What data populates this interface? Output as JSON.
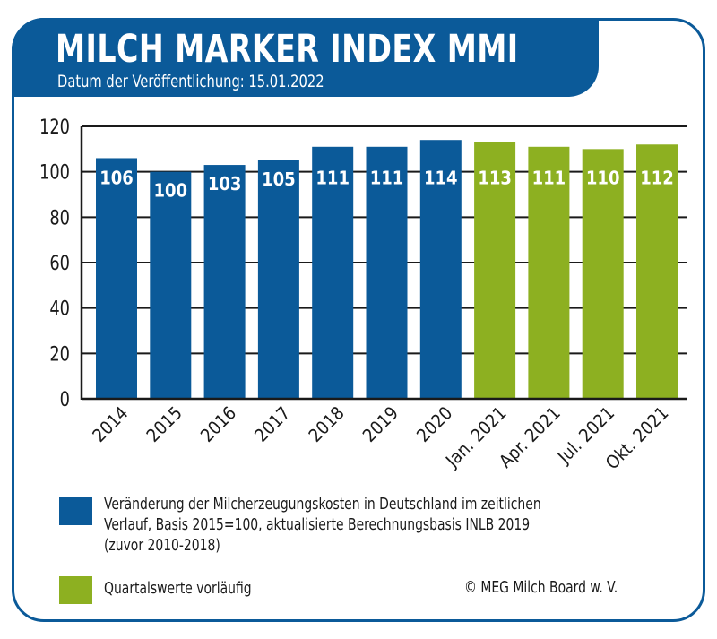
{
  "header": {
    "title": "MILCH MARKER INDEX MMI",
    "subtitle": "Datum der Veröffentlichung: 15.01.2022"
  },
  "colors": {
    "brand_blue": "#0b5a99",
    "provisional_green": "#8db021"
  },
  "chart_data": {
    "type": "bar",
    "title": "MILCH MARKER INDEX MMI",
    "subtitle": "Datum der Veröffentlichung: 15.01.2022",
    "xlabel": "",
    "ylabel": "",
    "ylim": [
      0,
      120
    ],
    "yticks": [
      0,
      20,
      40,
      60,
      80,
      100,
      120
    ],
    "grid": true,
    "categories": [
      "2014",
      "2015",
      "2016",
      "2017",
      "2018",
      "2019",
      "2020",
      "Jan. 2021",
      "Apr. 2021",
      "Jul. 2021",
      "Okt. 2021"
    ],
    "values": [
      106,
      100,
      103,
      105,
      111,
      111,
      114,
      113,
      111,
      110,
      112
    ],
    "bar_groups": [
      "annual",
      "annual",
      "annual",
      "annual",
      "annual",
      "annual",
      "annual",
      "provisional",
      "provisional",
      "provisional",
      "provisional"
    ],
    "data_labels": [
      "106",
      "100",
      "103",
      "105",
      "111",
      "111",
      "114",
      "113",
      "111",
      "110",
      "112"
    ],
    "legend": [
      {
        "key": "annual",
        "color": "#0b5a99",
        "label_lines": [
          "Veränderung der Milcherzeugungskosten in Deutschland im zeitlichen",
          "Verlauf, Basis 2015=100, aktualisierte Berechnungsbasis INLB 2019",
          "(zuvor 2010-2018)"
        ]
      },
      {
        "key": "provisional",
        "color": "#8db021",
        "label_lines": [
          "Quartalswerte vorläufig"
        ]
      }
    ],
    "legend_position": "bottom"
  },
  "footer": {
    "copyright": "© MEG Milch Board w. V."
  }
}
